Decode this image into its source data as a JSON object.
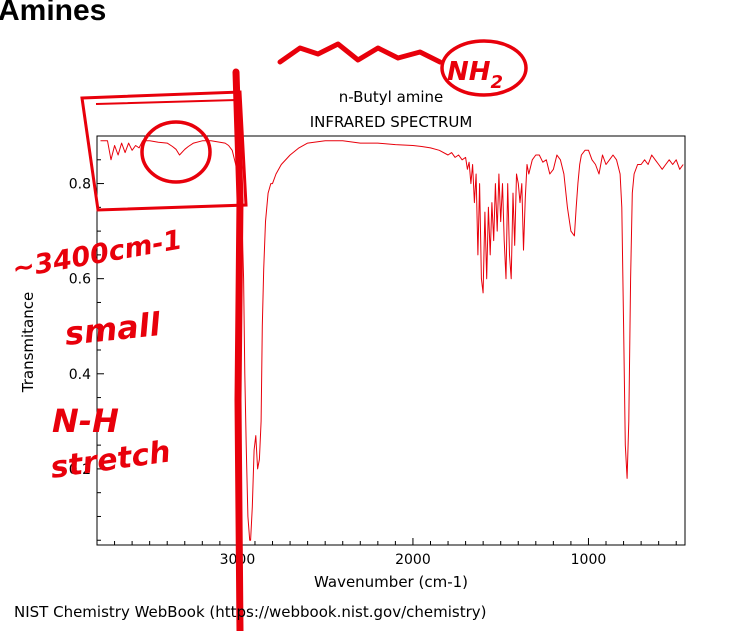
{
  "page": {
    "heading": "Amines"
  },
  "chart_data": {
    "type": "line",
    "title": "n-Butyl amine",
    "subtitle": "INFRARED SPECTRUM",
    "xlabel": "Wavenumber (cm-1)",
    "ylabel": "Transmitance",
    "xlim": [
      3800,
      450
    ],
    "ylim": [
      0.04,
      0.9
    ],
    "x_reversed": true,
    "grid": false,
    "x_ticks": [
      3000,
      2000,
      1000
    ],
    "y_ticks": [
      0.2,
      0.4,
      0.6,
      0.8
    ],
    "x_tick_labels": [
      "3000",
      "2000",
      "1000"
    ],
    "y_tick_labels": [
      "0.2",
      "0.4",
      "0.6",
      "0.8"
    ],
    "series": [
      {
        "color": "#e8000b",
        "x": [
          3780,
          3740,
          3720,
          3700,
          3680,
          3660,
          3640,
          3620,
          3600,
          3580,
          3560,
          3540,
          3500,
          3450,
          3400,
          3370,
          3350,
          3330,
          3300,
          3280,
          3250,
          3200,
          3150,
          3100,
          3070,
          3050,
          3030,
          3010,
          2990,
          2975,
          2965,
          2958,
          2950,
          2940,
          2930,
          2925,
          2915,
          2905,
          2895,
          2885,
          2875,
          2865,
          2858,
          2850,
          2840,
          2825,
          2810,
          2800,
          2780,
          2750,
          2700,
          2650,
          2600,
          2500,
          2400,
          2300,
          2200,
          2100,
          2000,
          1950,
          1900,
          1850,
          1800,
          1780,
          1760,
          1740,
          1720,
          1700,
          1690,
          1680,
          1670,
          1660,
          1650,
          1640,
          1630,
          1620,
          1610,
          1600,
          1590,
          1580,
          1570,
          1560,
          1550,
          1540,
          1530,
          1520,
          1510,
          1500,
          1490,
          1480,
          1470,
          1460,
          1450,
          1440,
          1430,
          1420,
          1410,
          1400,
          1390,
          1380,
          1370,
          1360,
          1350,
          1340,
          1320,
          1300,
          1280,
          1260,
          1240,
          1220,
          1200,
          1180,
          1160,
          1140,
          1120,
          1100,
          1080,
          1070,
          1060,
          1050,
          1040,
          1020,
          1000,
          980,
          960,
          940,
          920,
          900,
          880,
          860,
          840,
          820,
          810,
          800,
          790,
          780,
          770,
          760,
          750,
          740,
          720,
          700,
          680,
          660,
          640,
          620,
          600,
          580,
          560,
          540,
          520,
          500,
          480,
          460
        ],
        "y": [
          0.89,
          0.89,
          0.85,
          0.88,
          0.86,
          0.885,
          0.865,
          0.885,
          0.87,
          0.88,
          0.875,
          0.89,
          0.89,
          0.887,
          0.885,
          0.878,
          0.872,
          0.86,
          0.872,
          0.878,
          0.885,
          0.89,
          0.89,
          0.887,
          0.885,
          0.88,
          0.87,
          0.84,
          0.8,
          0.74,
          0.6,
          0.4,
          0.25,
          0.1,
          0.05,
          0.05,
          0.12,
          0.24,
          0.27,
          0.2,
          0.22,
          0.3,
          0.5,
          0.62,
          0.72,
          0.78,
          0.8,
          0.8,
          0.82,
          0.84,
          0.86,
          0.875,
          0.885,
          0.89,
          0.89,
          0.885,
          0.885,
          0.882,
          0.88,
          0.878,
          0.875,
          0.87,
          0.86,
          0.865,
          0.855,
          0.86,
          0.85,
          0.855,
          0.83,
          0.845,
          0.8,
          0.84,
          0.76,
          0.82,
          0.65,
          0.8,
          0.6,
          0.57,
          0.74,
          0.6,
          0.75,
          0.65,
          0.76,
          0.68,
          0.8,
          0.7,
          0.82,
          0.72,
          0.8,
          0.68,
          0.6,
          0.8,
          0.65,
          0.6,
          0.78,
          0.67,
          0.82,
          0.8,
          0.76,
          0.8,
          0.66,
          0.77,
          0.84,
          0.82,
          0.85,
          0.86,
          0.86,
          0.845,
          0.85,
          0.82,
          0.83,
          0.86,
          0.85,
          0.82,
          0.75,
          0.7,
          0.69,
          0.75,
          0.8,
          0.84,
          0.86,
          0.87,
          0.87,
          0.85,
          0.84,
          0.82,
          0.86,
          0.84,
          0.85,
          0.86,
          0.85,
          0.82,
          0.75,
          0.5,
          0.25,
          0.18,
          0.3,
          0.6,
          0.78,
          0.82,
          0.84,
          0.84,
          0.85,
          0.84,
          0.86,
          0.85,
          0.84,
          0.83,
          0.84,
          0.85,
          0.84,
          0.85,
          0.83,
          0.84
        ]
      }
    ]
  },
  "annotations": {
    "formula": "NH",
    "subscript": "2",
    "wavenumber_note": "~3400cm-1",
    "size_note": "small",
    "bond_note": "N-H",
    "type_note": "stretch"
  },
  "source": "NIST Chemistry WebBook (https://webbook.nist.gov/chemistry)"
}
